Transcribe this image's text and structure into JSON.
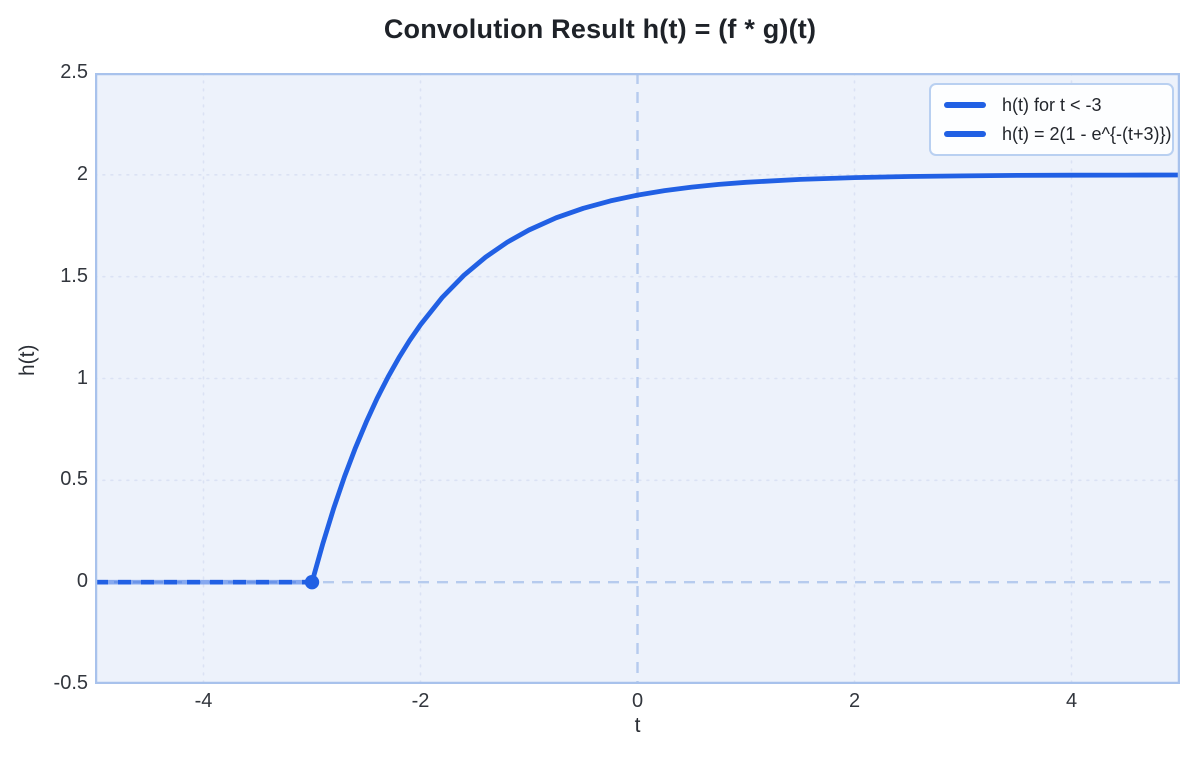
{
  "title": "Convolution Result h(t) = (f * g)(t)",
  "colors": {
    "curve": "#2160e4",
    "plot_bg": "#edf2fb",
    "grid_dotted": "#dbe2f4",
    "reference_dashed": "#b6cbee",
    "frame_border": "#a8c2ec",
    "marker": "#2160e4"
  },
  "chart_data": {
    "type": "line",
    "title": "Convolution Result h(t) = (f * g)(t)",
    "xlabel": "t",
    "ylabel": "h(t)",
    "xlim": [
      -5,
      5
    ],
    "ylim": [
      -0.5,
      2.5
    ],
    "grid": "dotted",
    "x_ticks": [
      {
        "value": -4,
        "label": "-4"
      },
      {
        "value": -2,
        "label": "-2"
      },
      {
        "value": 0,
        "label": "0"
      },
      {
        "value": 2,
        "label": "2"
      },
      {
        "value": 4,
        "label": "4"
      }
    ],
    "y_ticks": [
      {
        "value": -0.5,
        "label": "-0.5"
      },
      {
        "value": 0,
        "label": "0"
      },
      {
        "value": 0.5,
        "label": "0.5"
      },
      {
        "value": 1,
        "label": "1"
      },
      {
        "value": 1.5,
        "label": "1.5"
      },
      {
        "value": 2,
        "label": "2"
      },
      {
        "value": 2.5,
        "label": "2.5"
      }
    ],
    "reference_lines": [
      {
        "axis": "vertical",
        "value": 0
      },
      {
        "axis": "horizontal",
        "value": 0
      }
    ],
    "legend": {
      "position": "top-right",
      "entries": [
        {
          "label": "h(t) for t < -3",
          "color": "#2160e4"
        },
        {
          "label": "h(t) = 2(1 - e^{-(t+3)})",
          "color": "#2160e4"
        }
      ]
    },
    "series": [
      {
        "name": "h(t) for t < -3",
        "color": "#2160e4",
        "style": "dashed-over-solid",
        "points": [
          [
            -5,
            0
          ],
          [
            -3,
            0
          ]
        ]
      },
      {
        "name": "h(t) = 2(1 - e^{-(t+3)})",
        "color": "#2160e4",
        "style": "solid",
        "points": [
          [
            -3,
            0
          ],
          [
            -2.9,
            0.1903
          ],
          [
            -2.8,
            0.3625
          ],
          [
            -2.7,
            0.5184
          ],
          [
            -2.6,
            0.6594
          ],
          [
            -2.5,
            0.7869
          ],
          [
            -2.4,
            0.9023
          ],
          [
            -2.3,
            1.0067
          ],
          [
            -2.2,
            1.1012
          ],
          [
            -2.1,
            1.1867
          ],
          [
            -2,
            1.2642
          ],
          [
            -1.8,
            1.3976
          ],
          [
            -1.6,
            1.5068
          ],
          [
            -1.4,
            1.5961
          ],
          [
            -1.2,
            1.6692
          ],
          [
            -1,
            1.7293
          ],
          [
            -0.75,
            1.7892
          ],
          [
            -0.5,
            1.8358
          ],
          [
            -0.25,
            1.8721
          ],
          [
            0,
            1.9004
          ],
          [
            0.25,
            1.9225
          ],
          [
            0.5,
            1.9396
          ],
          [
            0.75,
            1.953
          ],
          [
            1,
            1.9634
          ],
          [
            1.5,
            1.9778
          ],
          [
            2,
            1.9865
          ],
          [
            2.5,
            1.9918
          ],
          [
            3,
            1.995
          ],
          [
            3.5,
            1.997
          ],
          [
            4,
            1.9982
          ],
          [
            4.5,
            1.9989
          ],
          [
            5,
            1.9993
          ]
        ]
      }
    ],
    "markers": [
      {
        "x": -3,
        "y": 0,
        "color": "#2160e4"
      }
    ]
  }
}
